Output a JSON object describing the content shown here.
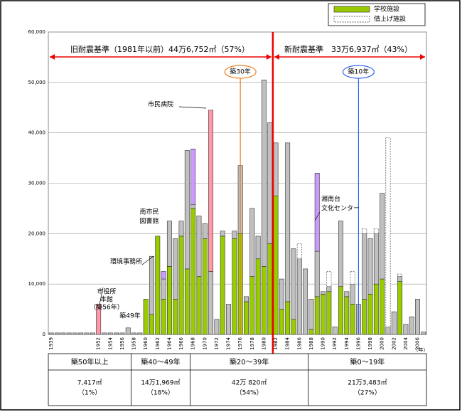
{
  "chart_data": {
    "type": "bar",
    "stacked": true,
    "categories": [
      "1939",
      null,
      null,
      null,
      null,
      null,
      null,
      null,
      "1952",
      null,
      "1954",
      null,
      "1956",
      null,
      "1958",
      null,
      "1960",
      null,
      "1962",
      null,
      "1964",
      null,
      "1966",
      null,
      "1968",
      null,
      "1970",
      null,
      "1972",
      null,
      "1974",
      null,
      "1976",
      null,
      "1978",
      null,
      "1980",
      null,
      "1982",
      null,
      "1984",
      null,
      "1986",
      null,
      "1988",
      null,
      "1990",
      null,
      "1992",
      null,
      "1994",
      null,
      "1996",
      null,
      "1998",
      null,
      "2000",
      null,
      "2002",
      null,
      "2004",
      null,
      "2006",
      null
    ],
    "x_label": "（年）",
    "series": [
      {
        "name": "学校施設",
        "color": "#99cc00",
        "values": [
          0,
          0,
          0,
          0,
          0,
          0,
          0,
          0,
          0,
          0,
          0,
          0,
          0,
          0,
          0,
          0,
          7000,
          4000,
          19500,
          7000,
          13500,
          7000,
          19500,
          13000,
          25000,
          11500,
          19000,
          0,
          0,
          19500,
          0,
          19000,
          20000,
          6500,
          11500,
          15000,
          13500,
          18000,
          27500,
          5000,
          6500,
          3000,
          0,
          0,
          1000,
          7500,
          8000,
          8500,
          0,
          9500,
          7500,
          6000,
          0,
          7000,
          8000,
          10000,
          11000,
          0,
          0,
          10500,
          0,
          0,
          0,
          0
        ]
      },
      {
        "color": "#c0c0c0",
        "values": [
          300,
          300,
          300,
          300,
          300,
          300,
          300,
          300,
          0,
          300,
          300,
          300,
          300,
          1300,
          300,
          300,
          0,
          11500,
          0,
          4000,
          9000,
          12000,
          3000,
          23500,
          800,
          12000,
          3000,
          12500,
          3000,
          1000,
          6000,
          1500,
          13500,
          1000,
          13500,
          4500,
          37000,
          24000,
          10500,
          6000,
          31500,
          14000,
          15000,
          13000,
          6000,
          9000,
          500,
          1000,
          1500,
          13000,
          1000,
          4000,
          6000,
          13000,
          11000,
          10000,
          17000,
          1500,
          4500,
          1000,
          2000,
          3500,
          7000,
          500
        ]
      },
      {
        "color": "#cc99ff",
        "values": [
          0,
          0,
          0,
          0,
          0,
          0,
          0,
          0,
          0,
          0,
          0,
          0,
          0,
          0,
          0,
          0,
          0,
          0,
          0,
          1500,
          0,
          0,
          0,
          0,
          11000,
          0,
          0,
          0,
          0,
          0,
          0,
          0,
          0,
          0,
          0,
          0,
          0,
          0,
          0,
          0,
          0,
          0,
          0,
          0,
          0,
          15500,
          0,
          0,
          0,
          0,
          0,
          0,
          0,
          0,
          0,
          0,
          0,
          0,
          0,
          0,
          0,
          0,
          0,
          0
        ]
      },
      {
        "color": "#ff99aa",
        "values": [
          0,
          0,
          0,
          0,
          0,
          0,
          0,
          0,
          6000,
          0,
          0,
          0,
          0,
          0,
          0,
          0,
          0,
          0,
          0,
          0,
          0,
          0,
          0,
          0,
          0,
          0,
          0,
          32000,
          0,
          0,
          0,
          0,
          0,
          0,
          0,
          0,
          0,
          0,
          0,
          0,
          0,
          0,
          0,
          0,
          0,
          0,
          0,
          0,
          0,
          0,
          0,
          0,
          0,
          0,
          0,
          0,
          0,
          0,
          0,
          0,
          0,
          0,
          0,
          0
        ]
      },
      {
        "name": "借上げ施設",
        "color": "#ffffff",
        "dashed": true,
        "values": [
          0,
          0,
          0,
          0,
          0,
          0,
          0,
          0,
          0,
          0,
          0,
          0,
          0,
          0,
          0,
          0,
          0,
          0,
          0,
          0,
          0,
          0,
          0,
          0,
          0,
          0,
          0,
          0,
          0,
          0,
          0,
          0,
          0,
          0,
          0,
          0,
          0,
          0,
          0,
          0,
          0,
          0,
          3000,
          0,
          0,
          0,
          0,
          3000,
          0,
          0,
          0,
          2500,
          0,
          1000,
          0,
          1000,
          0,
          37500,
          0,
          500,
          0,
          0,
          0,
          0
        ]
      }
    ],
    "ylim": [
      0,
      60000
    ],
    "yticks": [
      0,
      {
        "value": 10000,
        "label": "10,000"
      },
      {
        "value": 20000,
        "label": "20,000"
      },
      {
        "value": 30000,
        "label": "30,000"
      },
      {
        "value": 40000,
        "label": "40,000"
      },
      {
        "value": 50000,
        "label": "50,000"
      },
      {
        "value": 60000,
        "label": "60,000"
      }
    ],
    "grid": true,
    "legend": "top-right",
    "annotations": [
      {
        "lines": [
          "旧耐震基準（1981年以前）44万6,752㎡（57%）"
        ]
      },
      {
        "lines": [
          "新耐震基準　33万6,937㎡（43%）"
        ]
      },
      {
        "lines": [
          "築30年"
        ]
      },
      {
        "lines": [
          "築10年"
        ]
      },
      {
        "lines": [
          "市民病院"
        ]
      },
      {
        "lines": [
          "南市民",
          "図書館"
        ]
      },
      {
        "lines": [
          "湘南台",
          "文化センター"
        ]
      },
      {
        "lines": [
          "環境事務所"
        ]
      },
      {
        "lines": [
          "市役所",
          "本館",
          "（築56年）"
        ]
      },
      {
        "lines": [
          "築49年"
        ]
      }
    ]
  },
  "table": {
    "headers": [
      "築50年以上",
      "築40～49年",
      "築20～39年",
      "築0～19年"
    ],
    "cells": [
      [
        "7,417㎡",
        "（1%）"
      ],
      [
        "14万1,969㎡",
        "（18%）"
      ],
      [
        "42万 820㎡",
        "（54%）"
      ],
      [
        "21万3,483㎡",
        "（27%）"
      ]
    ]
  }
}
